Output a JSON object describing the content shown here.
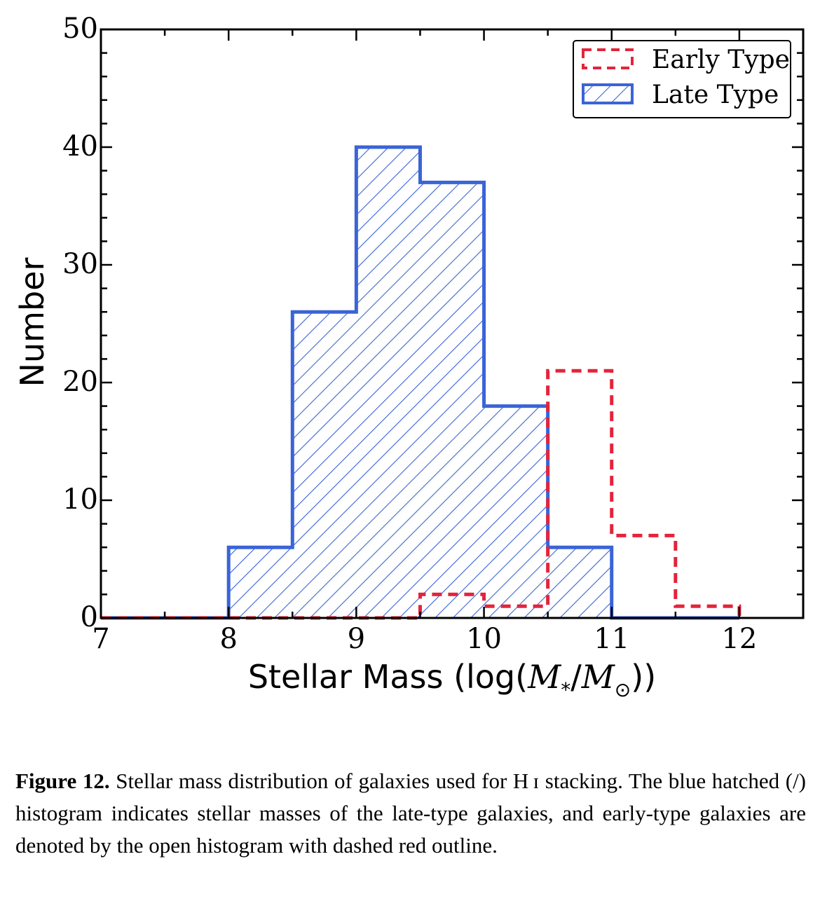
{
  "chart_data": {
    "type": "histogram",
    "xlabel_text": "Stellar Mass (log(",
    "xlabel_m1": "M",
    "xlabel_sub1": "*",
    "xlabel_slash": "/",
    "xlabel_m2": "M",
    "xlabel_sub2": "⊙",
    "xlabel_end": "))",
    "ylabel": "Number",
    "xlim": [
      7,
      12.5
    ],
    "ylim": [
      0,
      50
    ],
    "xticks": [
      7,
      8,
      9,
      10,
      11,
      12
    ],
    "yticks": [
      0,
      10,
      20,
      30,
      40,
      50
    ],
    "legend_position": "top-right",
    "bin_edges": [
      7.0,
      7.5,
      8.0,
      8.5,
      9.0,
      9.5,
      10.0,
      10.5,
      11.0,
      11.5,
      12.0
    ],
    "series": [
      {
        "name": "Late Type",
        "style": "hatched",
        "color": "#3a64d6",
        "values": [
          0,
          0,
          6,
          26,
          40,
          37,
          18,
          6,
          0,
          0
        ]
      },
      {
        "name": "Early Type",
        "style": "dashed-open",
        "color": "#e3243b",
        "values": [
          0,
          0,
          0,
          0,
          0,
          2,
          1,
          21,
          7,
          1
        ]
      }
    ]
  },
  "caption": {
    "label": "Figure 12.",
    "text": " Stellar mass distribution of galaxies used for H ɪ stacking. The blue hatched (/) histogram indicates stellar masses of the late-type galaxies, and early-type galaxies are denoted by the open histogram with dashed red outline."
  }
}
